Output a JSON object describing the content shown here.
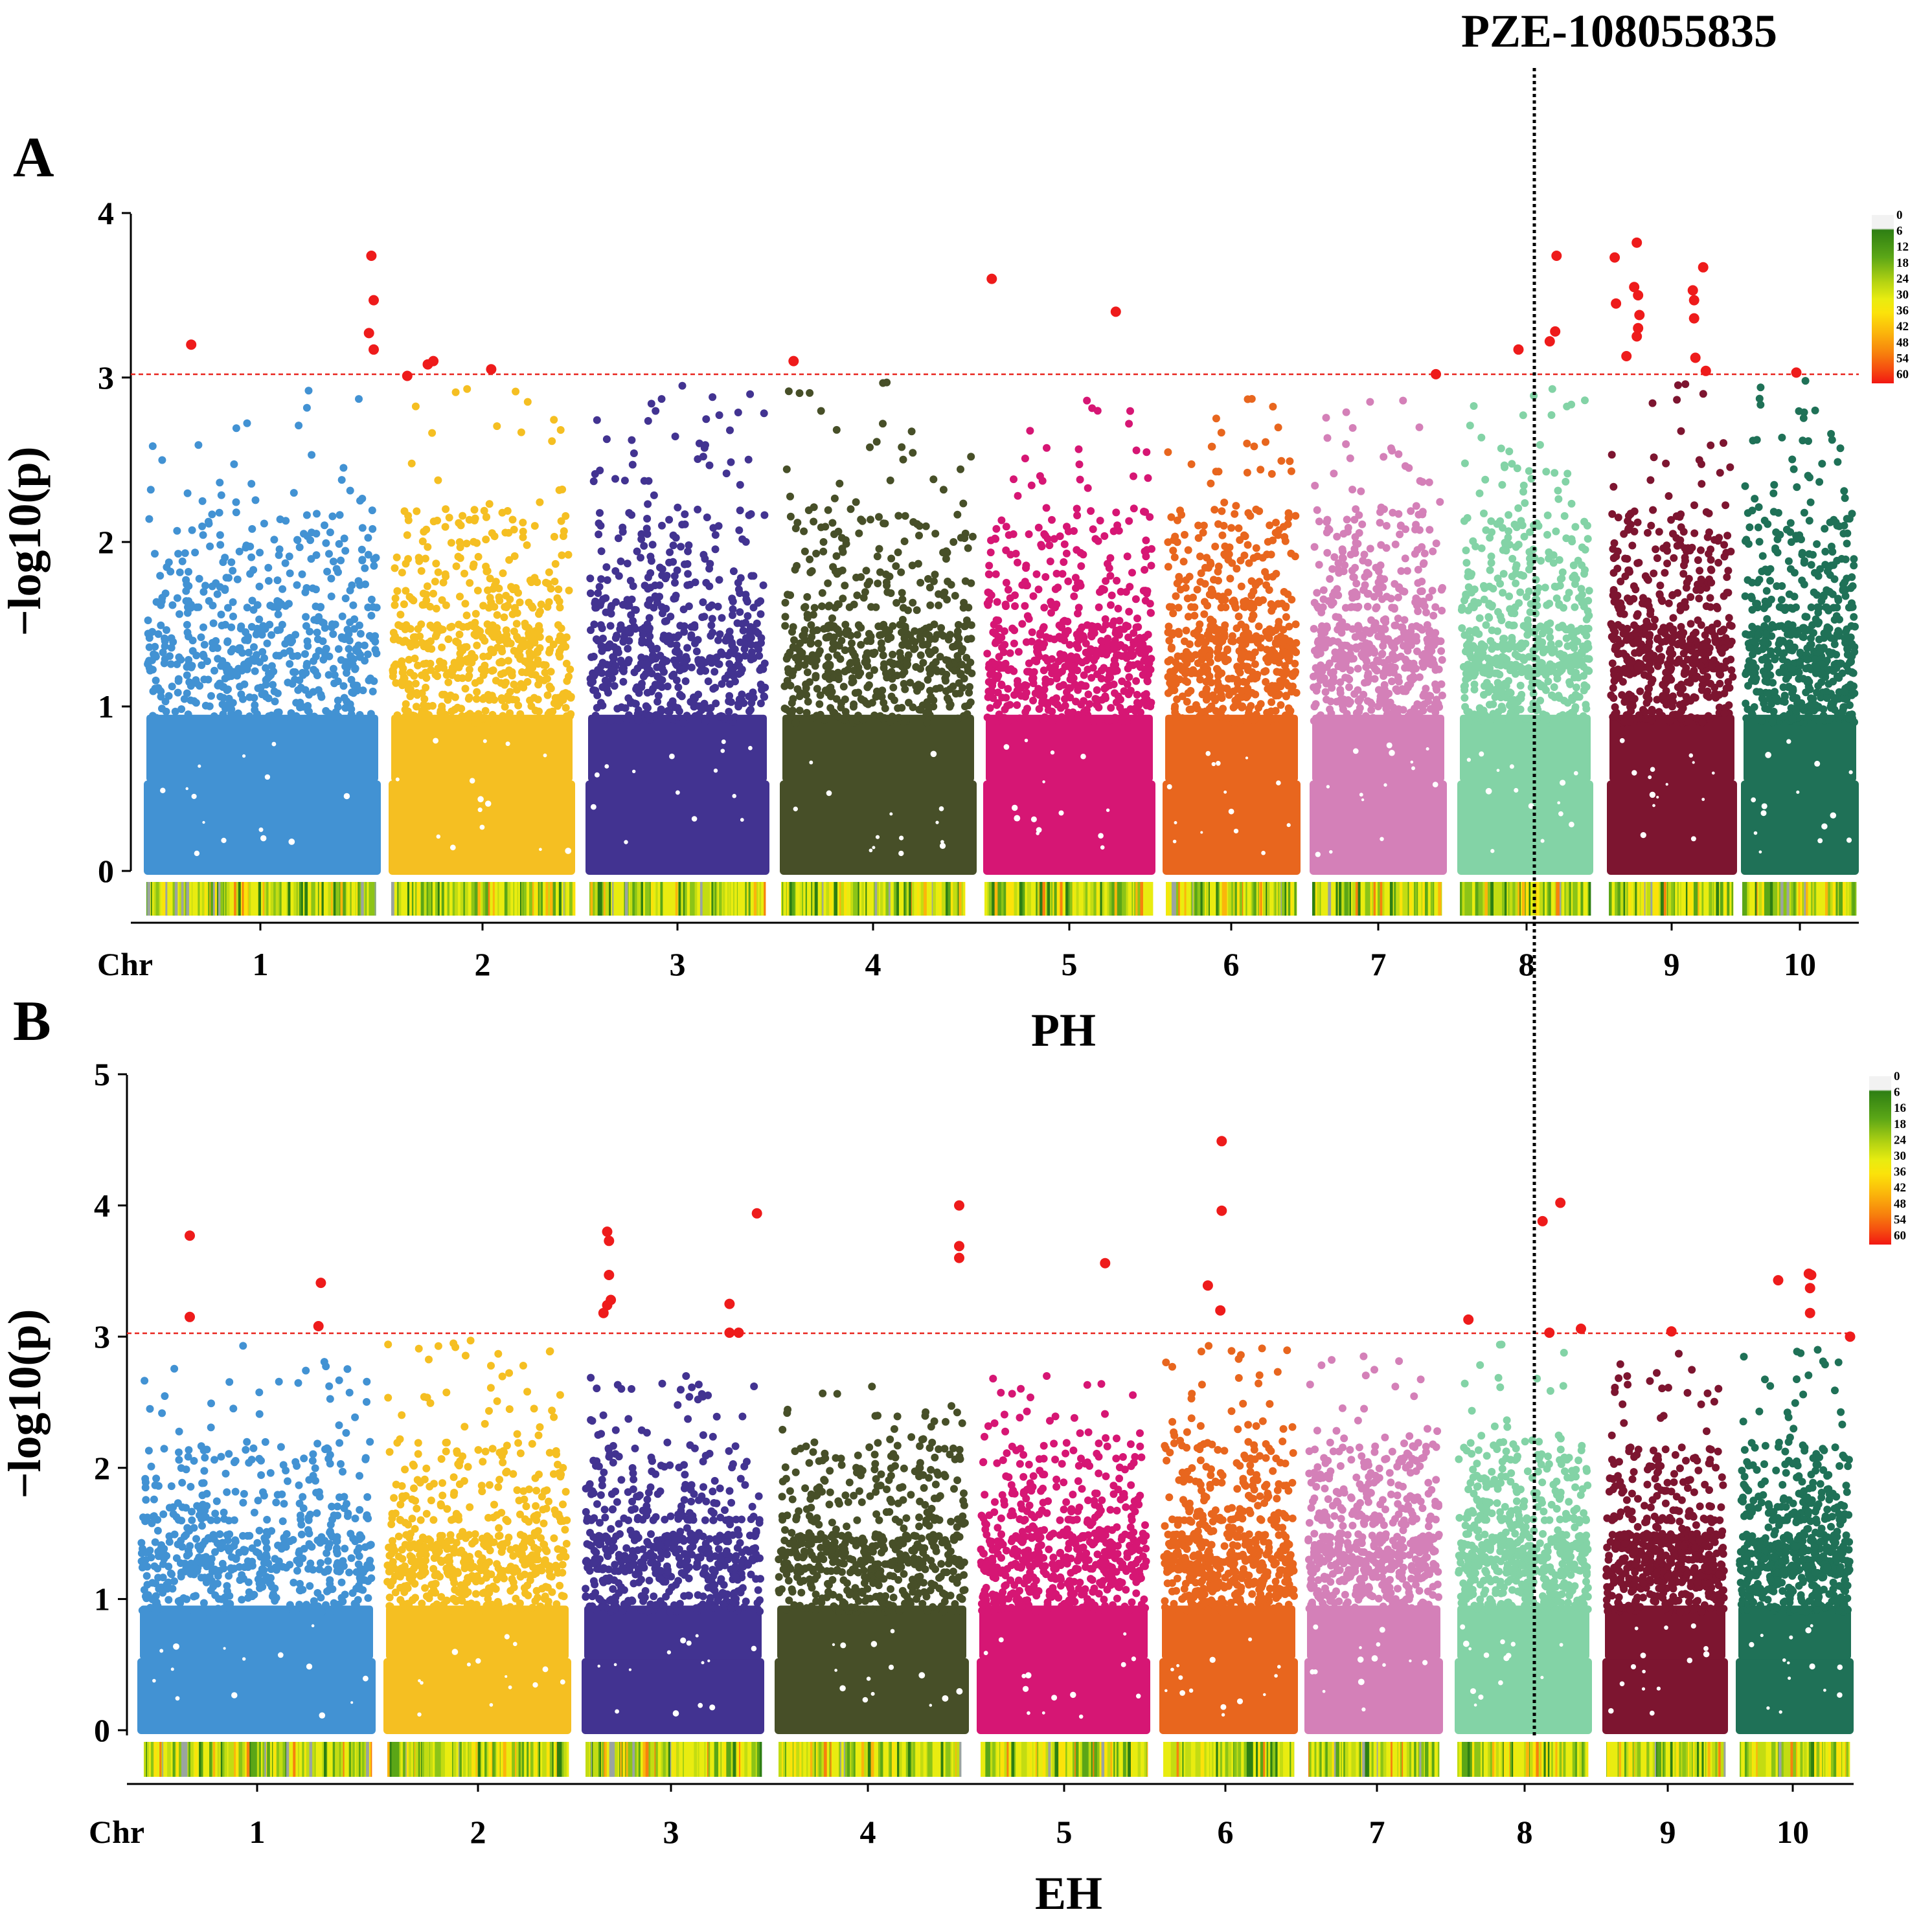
{
  "chart_data": [
    {
      "type": "scatter",
      "panel": "A",
      "title": "",
      "xlabel": "PH",
      "ylabel": "−log10(p)",
      "x_prefix": "Chr",
      "chromosomes": [
        "1",
        "2",
        "3",
        "4",
        "5",
        "6",
        "7",
        "8",
        "9",
        "10"
      ],
      "ylim": [
        0,
        4
      ],
      "yticks": [
        "0",
        "1",
        "2",
        "3",
        "4"
      ],
      "threshold": 3,
      "colors": [
        "#4292d3",
        "#f5bf22",
        "#423391",
        "#474f28",
        "#d61674",
        "#e8661e",
        "#d480b8",
        "#83d3a6",
        "#7d1530",
        "#1f7157"
      ],
      "highlight_color": "#ee1b1b",
      "density_legend": [
        "0",
        "6",
        "12",
        "18",
        "24",
        "30",
        "36",
        "42",
        "48",
        "54",
        "60"
      ],
      "max_nonsig": [
        2.92,
        2.93,
        2.95,
        2.97,
        2.86,
        2.87,
        2.86,
        2.93,
        2.96,
        2.98
      ],
      "significant_snps": [
        {
          "chr": "1",
          "x": 0.2,
          "y": 3.2
        },
        {
          "chr": "1",
          "x": 0.96,
          "y": 3.74
        },
        {
          "chr": "1",
          "x": 0.97,
          "y": 3.47
        },
        {
          "chr": "1",
          "x": 0.95,
          "y": 3.27
        },
        {
          "chr": "1",
          "x": 0.97,
          "y": 3.17
        },
        {
          "chr": "2",
          "x": 0.1,
          "y": 3.01
        },
        {
          "chr": "2",
          "x": 0.21,
          "y": 3.08
        },
        {
          "chr": "2",
          "x": 0.24,
          "y": 3.1
        },
        {
          "chr": "2",
          "x": 0.55,
          "y": 3.05
        },
        {
          "chr": "4",
          "x": 0.07,
          "y": 3.1
        },
        {
          "chr": "5",
          "x": 0.05,
          "y": 3.6
        },
        {
          "chr": "5",
          "x": 0.77,
          "y": 3.4
        },
        {
          "chr": "7",
          "x": 0.92,
          "y": 3.02
        },
        {
          "chr": "8",
          "x": 0.45,
          "y": 3.17
        },
        {
          "chr": "8",
          "x": 0.68,
          "y": 3.22
        },
        {
          "chr": "8",
          "x": 0.72,
          "y": 3.28
        },
        {
          "chr": "8",
          "x": 0.73,
          "y": 3.74
        },
        {
          "chr": "9",
          "x": 0.06,
          "y": 3.73
        },
        {
          "chr": "9",
          "x": 0.07,
          "y": 3.45
        },
        {
          "chr": "9",
          "x": 0.15,
          "y": 3.13
        },
        {
          "chr": "9",
          "x": 0.21,
          "y": 3.55
        },
        {
          "chr": "9",
          "x": 0.23,
          "y": 3.82
        },
        {
          "chr": "9",
          "x": 0.24,
          "y": 3.5
        },
        {
          "chr": "9",
          "x": 0.25,
          "y": 3.38
        },
        {
          "chr": "9",
          "x": 0.24,
          "y": 3.3
        },
        {
          "chr": "9",
          "x": 0.23,
          "y": 3.25
        },
        {
          "chr": "9",
          "x": 0.66,
          "y": 3.53
        },
        {
          "chr": "9",
          "x": 0.67,
          "y": 3.47
        },
        {
          "chr": "9",
          "x": 0.67,
          "y": 3.36
        },
        {
          "chr": "9",
          "x": 0.68,
          "y": 3.12
        },
        {
          "chr": "9",
          "x": 0.74,
          "y": 3.67
        },
        {
          "chr": "9",
          "x": 0.76,
          "y": 3.04
        },
        {
          "chr": "10",
          "x": 0.47,
          "y": 3.03
        }
      ],
      "marker": {
        "label": "PZE-108055835",
        "chr": "8",
        "x": 0.52
      }
    },
    {
      "type": "scatter",
      "panel": "B",
      "title": "",
      "xlabel": "EH",
      "ylabel": "−log10(p)",
      "x_prefix": "Chr",
      "chromosomes": [
        "1",
        "2",
        "3",
        "4",
        "5",
        "6",
        "7",
        "8",
        "9",
        "10"
      ],
      "ylim": [
        0,
        5
      ],
      "yticks": [
        "0",
        "1",
        "2",
        "3",
        "4",
        "5"
      ],
      "threshold": 3,
      "colors": [
        "#4292d3",
        "#f5bf22",
        "#423391",
        "#474f28",
        "#d61674",
        "#e8661e",
        "#d480b8",
        "#83d3a6",
        "#7d1530",
        "#1f7157"
      ],
      "highlight_color": "#ee1b1b",
      "density_legend": [
        "0",
        "6",
        "16",
        "18",
        "24",
        "30",
        "36",
        "42",
        "48",
        "54",
        "60"
      ],
      "max_nonsig": [
        2.93,
        2.97,
        2.7,
        2.62,
        2.7,
        2.93,
        2.85,
        2.94,
        2.87,
        2.9
      ],
      "significant_snps": [
        {
          "chr": "1",
          "x": 0.22,
          "y": 3.77
        },
        {
          "chr": "1",
          "x": 0.22,
          "y": 3.15
        },
        {
          "chr": "1",
          "x": 0.77,
          "y": 3.41
        },
        {
          "chr": "1",
          "x": 0.76,
          "y": 3.08
        },
        {
          "chr": "3",
          "x": 0.14,
          "y": 3.8
        },
        {
          "chr": "3",
          "x": 0.15,
          "y": 3.73
        },
        {
          "chr": "3",
          "x": 0.15,
          "y": 3.47
        },
        {
          "chr": "3",
          "x": 0.16,
          "y": 3.28
        },
        {
          "chr": "3",
          "x": 0.14,
          "y": 3.24
        },
        {
          "chr": "3",
          "x": 0.12,
          "y": 3.18
        },
        {
          "chr": "3",
          "x": 0.81,
          "y": 3.25
        },
        {
          "chr": "3",
          "x": 0.81,
          "y": 3.03
        },
        {
          "chr": "3",
          "x": 0.86,
          "y": 3.03
        },
        {
          "chr": "3",
          "x": 0.96,
          "y": 3.94
        },
        {
          "chr": "4",
          "x": 0.95,
          "y": 4.0
        },
        {
          "chr": "4",
          "x": 0.95,
          "y": 3.69
        },
        {
          "chr": "4",
          "x": 0.95,
          "y": 3.6
        },
        {
          "chr": "5",
          "x": 0.74,
          "y": 3.56
        },
        {
          "chr": "6",
          "x": 0.35,
          "y": 3.39
        },
        {
          "chr": "6",
          "x": 0.45,
          "y": 4.49
        },
        {
          "chr": "6",
          "x": 0.45,
          "y": 3.96
        },
        {
          "chr": "6",
          "x": 0.44,
          "y": 3.2
        },
        {
          "chr": "8",
          "x": 0.1,
          "y": 3.13
        },
        {
          "chr": "8",
          "x": 0.64,
          "y": 3.88
        },
        {
          "chr": "8",
          "x": 0.69,
          "y": 3.03
        },
        {
          "chr": "8",
          "x": 0.77,
          "y": 4.02
        },
        {
          "chr": "8",
          "x": 0.92,
          "y": 3.06
        },
        {
          "chr": "9",
          "x": 0.55,
          "y": 3.04
        },
        {
          "chr": "10",
          "x": 0.36,
          "y": 3.43
        },
        {
          "chr": "10",
          "x": 0.62,
          "y": 3.48
        },
        {
          "chr": "10",
          "x": 0.64,
          "y": 3.47
        },
        {
          "chr": "10",
          "x": 0.63,
          "y": 3.37
        },
        {
          "chr": "10",
          "x": 0.63,
          "y": 3.18
        },
        {
          "chr": "10",
          "x": 0.97,
          "y": 3.0
        }
      ],
      "marker": {
        "label": "PZE-108055835",
        "chr": "8",
        "x": 0.52
      }
    }
  ]
}
